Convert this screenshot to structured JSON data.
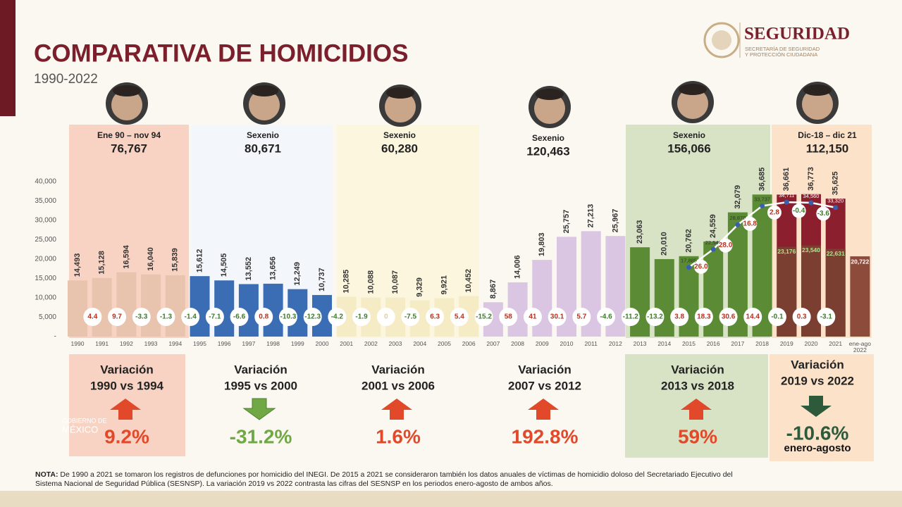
{
  "chart_data": {
    "type": "bar",
    "title": "COMPARATIVA DE HOMICIDIOS",
    "subtitle": "1990-2022",
    "brand": {
      "name": "SEGURIDAD",
      "lines": [
        "SECRETARÍA DE SEGURIDAD",
        "Y PROTECCIÓN CIUDADANA"
      ]
    },
    "watermark": [
      "GOBIERNO DE",
      "MÉXICO"
    ],
    "categories": [
      "1990",
      "1991",
      "1992",
      "1993",
      "1994",
      "1995",
      "1996",
      "1997",
      "1998",
      "1999",
      "2000",
      "2001",
      "2002",
      "2003",
      "2004",
      "2005",
      "2006",
      "2007",
      "2008",
      "2009",
      "2010",
      "2011",
      "2012",
      "2013",
      "2014",
      "2015",
      "2016",
      "2017",
      "2018",
      "2019",
      "2020",
      "2021",
      "ene-ago 2022"
    ],
    "values": [
      14493,
      15128,
      16594,
      16040,
      15839,
      15612,
      14505,
      13552,
      13656,
      12249,
      10737,
      10285,
      10088,
      10087,
      9329,
      9921,
      10452,
      8867,
      14006,
      19803,
      25757,
      27213,
      25967,
      23063,
      20010,
      20762,
      24559,
      32079,
      36685,
      36661,
      36773,
      35625,
      20722
    ],
    "value_labels": [
      "14,493",
      "15,128",
      "16,594",
      "16,040",
      "15,839",
      "15,612",
      "14,505",
      "13,552",
      "13,656",
      "12,249",
      "10,737",
      "10,285",
      "10,088",
      "10,087",
      "9,329",
      "9,921",
      "10,452",
      "8,867",
      "14,006",
      "19,803",
      "25,757",
      "27,213",
      "25,967",
      "23,063",
      "20,010",
      "20,762",
      "24,559",
      "32,079",
      "36,685",
      "36,661",
      "36,773",
      "35,625",
      "20,722"
    ],
    "colors": [
      "#e8c3ad",
      "#e8c3ad",
      "#e8c3ad",
      "#e8c3ad",
      "#e8c3ad",
      "#3b6db4",
      "#3b6db4",
      "#3b6db4",
      "#3b6db4",
      "#3b6db4",
      "#3b6db4",
      "#f5ebc4",
      "#f5ebc4",
      "#f5ebc4",
      "#f5ebc4",
      "#f5ebc4",
      "#f5ebc4",
      "#dac6e2",
      "#dac6e2",
      "#dac6e2",
      "#dac6e2",
      "#dac6e2",
      "#dac6e2",
      "#5b8c35",
      "#5b8c35",
      "#5b8c35",
      "#5b8c35",
      "#5b8c35",
      "#5b8c35",
      "#8b1f2d",
      "#8b1f2d",
      "#8b1f2d",
      "#8c4b3b"
    ],
    "changes": [
      null,
      4.4,
      9.7,
      -3.3,
      -1.3,
      -1.4,
      -7.1,
      -6.6,
      0.8,
      -10.3,
      -12.3,
      -4.2,
      -1.9,
      0,
      -7.5,
      6.3,
      5.4,
      -15.2,
      58,
      41,
      30.1,
      5.7,
      -4.6,
      -11.2,
      -13.2,
      3.8,
      18.3,
      30.6,
      14.4,
      -0.1,
      0.3,
      -3.1,
      null
    ],
    "ene_ago": [
      null,
      null,
      null,
      null,
      null,
      null,
      null,
      null,
      null,
      null,
      null,
      null,
      null,
      null,
      null,
      null,
      null,
      null,
      null,
      null,
      null,
      null,
      null,
      null,
      null,
      null,
      null,
      null,
      null,
      23176,
      23540,
      22631,
      null
    ],
    "ene_ago_labels": [
      null,
      null,
      null,
      null,
      null,
      null,
      null,
      null,
      null,
      null,
      null,
      null,
      null,
      null,
      null,
      null,
      null,
      null,
      null,
      null,
      null,
      null,
      null,
      null,
      null,
      null,
      null,
      null,
      null,
      "23,176",
      "23,540",
      "22,631",
      null
    ],
    "ene_ago_color": "#7a3f30",
    "sesnsp": [
      null,
      null,
      null,
      null,
      null,
      null,
      null,
      null,
      null,
      null,
      null,
      null,
      null,
      null,
      null,
      null,
      null,
      null,
      null,
      null,
      null,
      null,
      null,
      null,
      null,
      17885,
      22547,
      28870,
      33737,
      34711,
      34560,
      33320,
      null
    ],
    "sesnsp_labels": [
      null,
      null,
      null,
      null,
      null,
      null,
      null,
      null,
      null,
      null,
      null,
      null,
      null,
      null,
      null,
      null,
      null,
      null,
      null,
      null,
      null,
      null,
      null,
      null,
      null,
      "17,885",
      "22,547",
      "28,870",
      "33,737",
      "34,711",
      "34,560",
      "33,320",
      null
    ],
    "sesnsp_changes": [
      null,
      null,
      null,
      null,
      null,
      null,
      null,
      null,
      null,
      null,
      null,
      null,
      null,
      null,
      null,
      null,
      null,
      null,
      null,
      null,
      null,
      null,
      null,
      null,
      null,
      null,
      26.0,
      28.0,
      16.8,
      2.8,
      -0.4,
      -3.6,
      null
    ],
    "sesnsp_change_labels": [
      null,
      null,
      null,
      null,
      null,
      null,
      null,
      null,
      null,
      null,
      null,
      null,
      null,
      null,
      null,
      null,
      null,
      null,
      null,
      null,
      null,
      null,
      null,
      null,
      null,
      null,
      "26.0",
      "28.0",
      "16.8",
      "2.8",
      "-0.4",
      "-3.6",
      null
    ],
    "ylim": [
      0,
      40000
    ],
    "yticks": [
      {
        "value": 0,
        "label": "-"
      },
      {
        "value": 5000,
        "label": "5,000"
      },
      {
        "value": 10000,
        "label": "10,000"
      },
      {
        "value": 15000,
        "label": "15,000"
      },
      {
        "value": 20000,
        "label": "20,000"
      },
      {
        "value": 25000,
        "label": "25,000"
      },
      {
        "value": 30000,
        "label": "30,000"
      },
      {
        "value": 35000,
        "label": "35,000"
      },
      {
        "value": 40000,
        "label": "40,000"
      }
    ],
    "periods": [
      {
        "label": "Ene 90 – nov 94",
        "total": "76,767",
        "variation_title": "Variación",
        "variation_years": "1990 vs 1994",
        "variation": "9.2%",
        "direction": "up",
        "color": "#e2492a"
      },
      {
        "label": "Sexenio",
        "total": "80,671",
        "variation_title": "Variación",
        "variation_years": "1995 vs 2000",
        "variation": "-31.2%",
        "direction": "down",
        "color": "#6fa845"
      },
      {
        "label": "Sexenio",
        "total": "60,280",
        "variation_title": "Variación",
        "variation_years": "2001 vs 2006",
        "variation": "1.6%",
        "direction": "up",
        "color": "#e2492a"
      },
      {
        "label": "Sexenio",
        "total": "120,463",
        "variation_title": "Variación",
        "variation_years": "2007 vs 2012",
        "variation": "192.8%",
        "direction": "up",
        "color": "#e2492a"
      },
      {
        "label": "Sexenio",
        "total": "156,066",
        "variation_title": "Variación",
        "variation_years": "2013 vs 2018",
        "variation": "59%",
        "direction": "up",
        "color": "#e2492a"
      },
      {
        "label": "Dic-18 – dic 21",
        "total": "112,150",
        "variation_title": "Variación",
        "variation_years": "2019 vs 2022",
        "variation": "-10.6%",
        "variation_note": "enero-agosto",
        "direction": "down",
        "color": "#2e5a3c"
      }
    ],
    "note": {
      "label": "NOTA:",
      "text": "De 1990 a 2021 se tomaron los registros de defunciones por homicidio del INEGI. De 2015 a 2021 se consideraron también los datos anuales de víctimas de homicidio doloso del Secretariado Ejecutivo del Sistema Nacional de Seguridad Pública (SESNSP). La variación 2019 vs 2022 contrasta las cifras del SESNSP en los periodos enero-agosto de ambos años."
    }
  }
}
